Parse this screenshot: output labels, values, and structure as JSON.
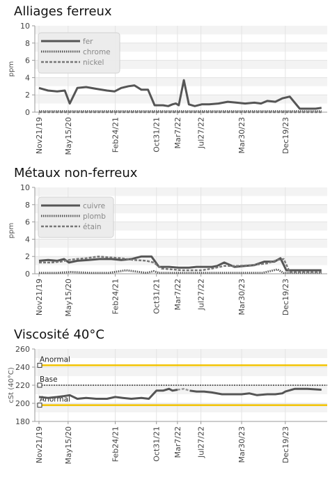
{
  "chart_data": [
    {
      "type": "line",
      "title": "Alliages ferreux",
      "ylabel": "ppm",
      "ylim": [
        0,
        10
      ],
      "yticks": [
        0,
        2,
        4,
        6,
        8,
        10
      ],
      "xrange": [
        "2019-11-21",
        "2024-08-20"
      ],
      "xticks": [
        "Nov21/19",
        "May15/20",
        "Feb24/21",
        "Oct31/21",
        "Mar7/22",
        "Jul27/22",
        "Mar30/23",
        "Dec19/23"
      ],
      "xtick_dates": [
        "2019-11-21",
        "2020-05-15",
        "2021-02-24",
        "2021-10-31",
        "2022-03-07",
        "2022-07-27",
        "2023-03-30",
        "2023-12-19"
      ],
      "grid": "banded",
      "legend_position": "top-left",
      "series": [
        {
          "name": "fer",
          "style": "solid",
          "color": "#555555",
          "x": [
            "2019-11-21",
            "2020-01-15",
            "2020-03-10",
            "2020-04-25",
            "2020-05-25",
            "2020-07-10",
            "2020-09-01",
            "2020-11-01",
            "2021-01-05",
            "2021-02-20",
            "2021-04-01",
            "2021-05-15",
            "2021-06-20",
            "2021-08-01",
            "2021-09-10",
            "2021-10-20",
            "2021-12-10",
            "2022-01-10",
            "2022-02-05",
            "2022-02-25",
            "2022-03-15",
            "2022-04-15",
            "2022-05-15",
            "2022-06-20",
            "2022-08-01",
            "2022-09-15",
            "2022-11-10",
            "2023-01-05",
            "2023-03-01",
            "2023-04-20",
            "2023-06-15",
            "2023-07-25",
            "2023-09-01",
            "2023-10-20",
            "2023-12-01",
            "2024-01-15",
            "2024-03-15",
            "2024-05-15",
            "2024-06-20",
            "2024-07-25"
          ],
          "values": [
            2.8,
            2.5,
            2.4,
            2.5,
            1.0,
            2.8,
            2.9,
            2.7,
            2.5,
            2.4,
            2.8,
            3.0,
            3.1,
            2.6,
            2.6,
            0.8,
            0.8,
            0.7,
            0.9,
            1.0,
            0.8,
            3.7,
            0.9,
            0.7,
            0.9,
            0.9,
            1.0,
            1.2,
            1.1,
            1.0,
            1.1,
            1.0,
            1.3,
            1.2,
            1.6,
            1.8,
            0.4,
            0.4,
            0.4,
            0.5
          ]
        },
        {
          "name": "chrome",
          "style": "dotted",
          "color": "#555555",
          "x": [
            "2019-11-21",
            "2020-06-01",
            "2021-01-01",
            "2021-10-01",
            "2022-03-01",
            "2022-10-01",
            "2023-06-01",
            "2024-01-01",
            "2024-07-25"
          ],
          "values": [
            0.1,
            0.1,
            0.1,
            0.1,
            0.1,
            0.1,
            0.1,
            0.1,
            0.1
          ]
        },
        {
          "name": "nickel",
          "style": "dashed",
          "color": "#777777",
          "x": [
            "2019-11-21",
            "2020-06-01",
            "2021-01-01",
            "2021-10-01",
            "2022-03-01",
            "2022-10-01",
            "2023-06-01",
            "2024-01-01",
            "2024-07-25"
          ],
          "values": [
            0.0,
            0.0,
            0.0,
            0.0,
            0.0,
            0.0,
            0.0,
            0.0,
            0.0
          ]
        }
      ]
    },
    {
      "type": "line",
      "title": "Métaux non-ferreux",
      "ylabel": "ppm",
      "ylim": [
        0,
        10
      ],
      "yticks": [
        0,
        2,
        4,
        6,
        8,
        10
      ],
      "xrange": [
        "2019-11-21",
        "2024-08-20"
      ],
      "xticks": [
        "Nov21/19",
        "May15/20",
        "Feb24/21",
        "Oct31/21",
        "Mar7/22",
        "Jul27/22",
        "Mar30/23",
        "Dec19/23"
      ],
      "xtick_dates": [
        "2019-11-21",
        "2020-05-15",
        "2021-02-24",
        "2021-10-31",
        "2022-03-07",
        "2022-07-27",
        "2023-03-30",
        "2023-12-19"
      ],
      "grid": "banded",
      "legend_position": "top-left",
      "series": [
        {
          "name": "cuivre",
          "style": "solid",
          "color": "#555555",
          "x": [
            "2019-11-21",
            "2020-01-15",
            "2020-03-10",
            "2020-04-20",
            "2020-05-20",
            "2020-07-10",
            "2020-09-15",
            "2020-11-20",
            "2021-02-01",
            "2021-04-01",
            "2021-06-01",
            "2021-08-01",
            "2021-10-01",
            "2021-11-15",
            "2022-01-15",
            "2022-03-15",
            "2022-05-15",
            "2022-07-01",
            "2022-08-20",
            "2022-10-01",
            "2022-11-01",
            "2022-12-15",
            "2023-02-15",
            "2023-04-20",
            "2023-06-15",
            "2023-08-15",
            "2023-10-15",
            "2023-11-20",
            "2023-12-25",
            "2024-02-01",
            "2024-04-01",
            "2024-07-25"
          ],
          "values": [
            1.5,
            1.6,
            1.5,
            1.7,
            1.3,
            1.5,
            1.6,
            1.7,
            1.7,
            1.6,
            1.7,
            2.0,
            2.0,
            0.8,
            0.8,
            0.7,
            0.7,
            0.8,
            0.8,
            0.8,
            0.9,
            1.3,
            0.8,
            0.9,
            1.0,
            1.4,
            1.4,
            1.8,
            0.4,
            0.4,
            0.4,
            0.4
          ]
        },
        {
          "name": "plomb",
          "style": "dotted",
          "color": "#555555",
          "x": [
            "2019-11-21",
            "2020-03-01",
            "2020-06-01",
            "2020-10-01",
            "2021-01-15",
            "2021-05-01",
            "2021-09-01",
            "2021-10-15",
            "2021-11-15",
            "2022-02-01",
            "2022-05-01",
            "2022-08-01",
            "2022-11-01",
            "2023-02-01",
            "2023-05-01",
            "2023-08-01",
            "2023-11-01",
            "2023-12-10",
            "2024-01-01",
            "2024-04-01",
            "2024-07-25"
          ],
          "values": [
            0.1,
            0.1,
            0.2,
            0.1,
            0.1,
            0.4,
            0.1,
            0.3,
            0.1,
            0.1,
            0.1,
            0.1,
            0.1,
            0.1,
            0.1,
            0.1,
            0.5,
            0.1,
            0.1,
            0.1,
            0.1
          ]
        },
        {
          "name": "étain",
          "style": "dashed",
          "color": "#777777",
          "x": [
            "2019-11-21",
            "2020-02-01",
            "2020-04-01",
            "2020-05-20",
            "2020-07-01",
            "2020-09-01",
            "2020-11-15",
            "2021-01-15",
            "2021-04-01",
            "2021-06-15",
            "2021-09-01",
            "2021-10-15",
            "2021-12-01",
            "2022-02-01",
            "2022-04-01",
            "2022-06-15",
            "2022-08-01",
            "2022-10-01",
            "2022-12-15",
            "2023-03-01",
            "2023-06-01",
            "2023-09-01",
            "2023-11-01",
            "2023-12-10",
            "2024-01-15",
            "2024-04-01",
            "2024-07-25"
          ],
          "values": [
            1.3,
            1.3,
            1.4,
            1.6,
            1.7,
            1.8,
            2.0,
            1.9,
            1.8,
            1.6,
            1.5,
            1.3,
            0.6,
            0.5,
            0.4,
            0.4,
            0.4,
            0.6,
            0.9,
            0.9,
            1.0,
            1.2,
            1.6,
            1.7,
            0.2,
            0.2,
            0.2
          ]
        }
      ]
    },
    {
      "type": "line",
      "title": "Viscosité 40°C",
      "ylabel": "cSt (40°C)",
      "ylim": [
        180,
        260
      ],
      "yticks": [
        180,
        200,
        220,
        240,
        260
      ],
      "xrange": [
        "2019-11-21",
        "2024-08-20"
      ],
      "xticks": [
        "Nov21/19",
        "May15/20",
        "Feb24/21",
        "Oct31/21",
        "Mar7/22",
        "Jul27/22",
        "Mar30/23",
        "Dec19/23"
      ],
      "xtick_dates": [
        "2019-11-21",
        "2020-05-15",
        "2021-02-24",
        "2021-10-31",
        "2022-03-07",
        "2022-07-27",
        "2023-03-30",
        "2023-12-19"
      ],
      "grid": "banded",
      "reference_lines": [
        {
          "label": "Anormal",
          "value": 242,
          "color": "#f2c200",
          "style": "solid"
        },
        {
          "label": "Base",
          "value": 220,
          "color": "#666666",
          "style": "dotted"
        },
        {
          "label": "Anormal",
          "value": 198,
          "color": "#f2c200",
          "style": "solid"
        }
      ],
      "series": [
        {
          "name": "",
          "style": "solid",
          "color": "#555555",
          "x": [
            "2019-11-21",
            "2020-01-15",
            "2020-03-10",
            "2020-04-20",
            "2020-05-25",
            "2020-07-10",
            "2020-09-01",
            "2020-11-01",
            "2021-01-05",
            "2021-02-24",
            "2021-04-10",
            "2021-06-01",
            "2021-08-01",
            "2021-09-15",
            "2021-10-31",
            "2021-12-10",
            "2022-01-15",
            "2022-02-05",
            "2022-03-07"
          ],
          "values": [
            207,
            206,
            207,
            208,
            209,
            205,
            206,
            205,
            205,
            207,
            206,
            205,
            206,
            205,
            214,
            214,
            216,
            214,
            215
          ]
        },
        {
          "name": "",
          "style": "dashed",
          "color": "#999999",
          "x": [
            "2022-03-07",
            "2022-04-15",
            "2022-05-20"
          ],
          "values": [
            215,
            216,
            214
          ]
        },
        {
          "name": "",
          "style": "solid",
          "color": "#555555",
          "x": [
            "2022-05-20",
            "2022-07-01",
            "2022-08-15",
            "2022-10-01",
            "2022-12-01",
            "2023-02-01",
            "2023-03-30",
            "2023-05-15",
            "2023-07-01",
            "2023-09-01",
            "2023-10-20",
            "2023-12-01",
            "2023-12-19",
            "2024-02-15",
            "2024-05-01",
            "2024-07-25"
          ],
          "values": [
            214,
            213,
            213,
            212,
            210,
            210,
            210,
            211,
            209,
            210,
            210,
            211,
            213,
            216,
            216,
            215
          ]
        }
      ]
    }
  ]
}
